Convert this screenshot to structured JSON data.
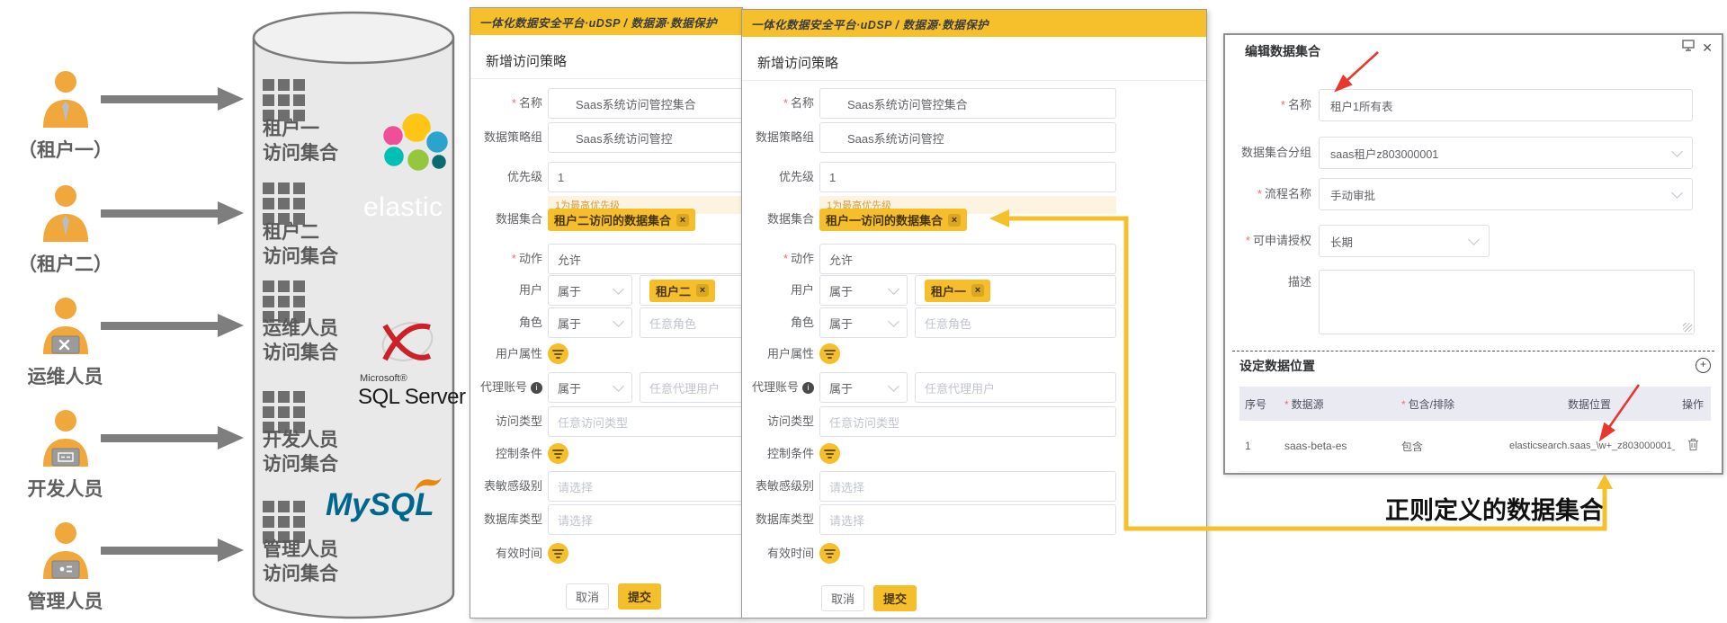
{
  "colors": {
    "accent": "#F5C02C",
    "tag_bg": "#F6BE2A",
    "arrow_gray": "#7e7e7e",
    "red_arrow": "#e8382d",
    "elastic_yellow": "#fec514",
    "elastic_pink": "#f04e98",
    "elastic_teal": "#00bfb3",
    "sqlserver_red": "#cc2127",
    "mysql_blue": "#00678c",
    "mysql_orange": "#e8890c"
  },
  "left_flow": {
    "personas": [
      {
        "label": "（租户一）",
        "variant": "tie"
      },
      {
        "label": "（租户二）",
        "variant": "tie"
      },
      {
        "label": "运维人员",
        "variant": "laptop-tools"
      },
      {
        "label": "开发人员",
        "variant": "laptop-code"
      },
      {
        "label": "管理人员",
        "variant": "laptop-admin"
      }
    ],
    "groups": [
      {
        "line1": "租户一",
        "line2": "访问集合"
      },
      {
        "line1": "租户二",
        "line2": "访问集合"
      },
      {
        "line1": "运维人员",
        "line2": "访问集合"
      },
      {
        "line1": "开发人员",
        "line2": "访问集合"
      },
      {
        "line1": "管理人员",
        "line2": "访问集合"
      }
    ],
    "logos": {
      "elastic": "elastic",
      "ms_small": "Microsoft®",
      "sqlserver": "SQL Server",
      "mysql": "MySQL"
    }
  },
  "dialogs": [
    {
      "header": "一体化数据安全平台·uDSP / 数据源·数据保护",
      "title": "新增访问策略",
      "rows": [
        {
          "label": "名称",
          "required": true,
          "type": "input",
          "value": "Saas系统访问管控集合"
        },
        {
          "label": "数据策略组",
          "type": "input",
          "value": "Saas系统访问管控"
        },
        {
          "label": "优先级",
          "type": "input",
          "value": "1",
          "hint": "1为最高优先级"
        },
        {
          "label": "数据集合",
          "type": "tag",
          "tag": "租户二访问的数据集合"
        },
        {
          "label": "动作",
          "required": true,
          "type": "input",
          "value": "允许"
        },
        {
          "label": "用户",
          "type": "select-tag",
          "select": "属于",
          "tag": "租户二"
        },
        {
          "label": "角色",
          "type": "select-input",
          "select": "属于",
          "placeholder": "任意角色"
        },
        {
          "label": "用户属性",
          "type": "expander"
        },
        {
          "label": "代理账号",
          "info": true,
          "type": "select-input",
          "select": "属于",
          "placeholder": "任意代理用户"
        },
        {
          "label": "访问类型",
          "type": "input",
          "placeholder": "任意访问类型"
        },
        {
          "label": "控制条件",
          "type": "expander"
        },
        {
          "label": "表敏感级别",
          "type": "input",
          "placeholder": "请选择"
        },
        {
          "label": "数据库类型",
          "type": "input",
          "placeholder": "请选择"
        },
        {
          "label": "有效时间",
          "type": "expander"
        }
      ],
      "cancel": "取消",
      "submit": "提交"
    },
    {
      "header": "一体化数据安全平台·uDSP / 数据源·数据保护",
      "title": "新增访问策略",
      "rows": [
        {
          "label": "名称",
          "required": true,
          "type": "input",
          "value": "Saas系统访问管控集合"
        },
        {
          "label": "数据策略组",
          "type": "input",
          "value": "Saas系统访问管控"
        },
        {
          "label": "优先级",
          "type": "input",
          "value": "1",
          "hint": "1为最高优先级"
        },
        {
          "label": "数据集合",
          "type": "tag",
          "tag": "租户一访问的数据集合"
        },
        {
          "label": "动作",
          "required": true,
          "type": "input",
          "value": "允许"
        },
        {
          "label": "用户",
          "type": "select-tag",
          "select": "属于",
          "tag": "租户一"
        },
        {
          "label": "角色",
          "type": "select-input",
          "select": "属于",
          "placeholder": "任意角色"
        },
        {
          "label": "用户属性",
          "type": "expander"
        },
        {
          "label": "代理账号",
          "info": true,
          "type": "select-input",
          "select": "属于",
          "placeholder": "任意代理用户"
        },
        {
          "label": "访问类型",
          "type": "input",
          "placeholder": "任意访问类型"
        },
        {
          "label": "控制条件",
          "type": "expander"
        },
        {
          "label": "表敏感级别",
          "type": "input",
          "placeholder": "请选择"
        },
        {
          "label": "数据库类型",
          "type": "input",
          "placeholder": "请选择"
        },
        {
          "label": "有效时间",
          "type": "expander"
        }
      ],
      "cancel": "取消",
      "submit": "提交"
    }
  ],
  "edit_panel": {
    "title": "编辑数据集合",
    "fields": [
      {
        "label": "名称",
        "required": true,
        "type": "input",
        "value": "租户1所有表"
      },
      {
        "label": "数据集合分组",
        "type": "select",
        "value": "saas租户z803000001"
      },
      {
        "label": "流程名称",
        "required": true,
        "type": "select",
        "value": "手动审批"
      },
      {
        "label": "可申请授权",
        "required": true,
        "type": "select-small",
        "value": "长期"
      },
      {
        "label": "描述",
        "type": "textarea",
        "value": ""
      }
    ],
    "section_title": "设定数据位置",
    "table": {
      "columns": [
        {
          "label": "序号"
        },
        {
          "label": "数据源",
          "required": true
        },
        {
          "label": "包含/排除",
          "required": true
        },
        {
          "label": "数据位置"
        },
        {
          "label": "操作"
        }
      ],
      "rows": [
        {
          "seq": "1",
          "source": "saas-beta-es",
          "mode": "包含",
          "location": "elasticsearch.saas_\\w+_z803000001_*"
        }
      ]
    }
  },
  "annotation": "正则定义的数据集合"
}
